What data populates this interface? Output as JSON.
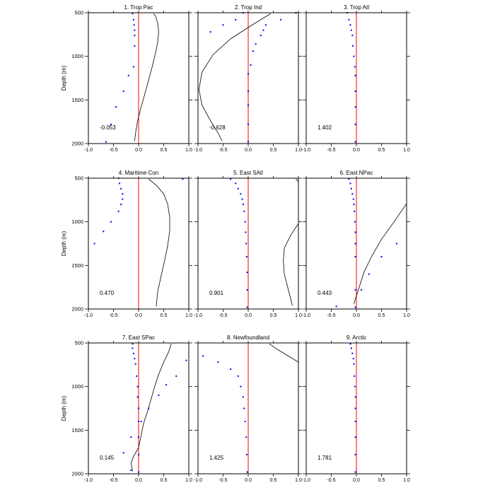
{
  "chart_data": {
    "type": "scatter",
    "layout": "3x3 panels",
    "xlim": [
      -1.0,
      1.0
    ],
    "ylim": [
      2000,
      500
    ],
    "y_reversed": true,
    "ylabel": "Depth (m)",
    "xticks": [
      "-1.0",
      "-0.5",
      "0.0",
      "0.5",
      "1.0"
    ],
    "yticks": [
      "500",
      "1000",
      "1500",
      "2000"
    ],
    "colors": {
      "points": "#0000ff",
      "zero_line": "#ff0000",
      "curve": "#000000"
    },
    "panels": [
      {
        "title": "1. Trop Pac",
        "value_label": "-0.053",
        "points": [
          [
            -0.12,
            510
          ],
          [
            -0.1,
            580
          ],
          [
            -0.09,
            640
          ],
          [
            -0.08,
            700
          ],
          [
            -0.08,
            760
          ],
          [
            -0.08,
            880
          ],
          [
            -0.1,
            1120
          ],
          [
            -0.2,
            1220
          ],
          [
            -0.3,
            1400
          ],
          [
            -0.45,
            1580
          ],
          [
            -0.55,
            1780
          ],
          [
            -0.65,
            1980
          ]
        ],
        "curve": [
          [
            0.3,
            510
          ],
          [
            0.34,
            540
          ],
          [
            0.38,
            620
          ],
          [
            0.4,
            720
          ],
          [
            0.38,
            840
          ],
          [
            0.33,
            980
          ],
          [
            0.27,
            1120
          ],
          [
            0.2,
            1270
          ],
          [
            0.13,
            1420
          ],
          [
            0.05,
            1580
          ],
          [
            -0.02,
            1740
          ],
          [
            -0.06,
            1880
          ],
          [
            -0.08,
            1970
          ]
        ]
      },
      {
        "title": "2. Trop Ind",
        "value_label": "-0.628",
        "points": [
          [
            0.95,
            500
          ],
          [
            0.65,
            580
          ],
          [
            0.35,
            640
          ],
          [
            0.3,
            700
          ],
          [
            0.25,
            760
          ],
          [
            0.15,
            860
          ],
          [
            0.1,
            940
          ],
          [
            0.05,
            1100
          ],
          [
            0.0,
            1200
          ],
          [
            0.0,
            1400
          ],
          [
            0.0,
            1560
          ],
          [
            0.0,
            1780
          ],
          [
            0.0,
            1980
          ],
          [
            -0.25,
            580
          ],
          [
            -0.75,
            720
          ],
          [
            -0.5,
            640
          ],
          [
            -0.1,
            500
          ]
        ],
        "curve": [
          [
            0.45,
            510
          ],
          [
            0.05,
            650
          ],
          [
            -0.35,
            800
          ],
          [
            -0.7,
            980
          ],
          [
            -0.92,
            1180
          ],
          [
            -0.98,
            1380
          ],
          [
            -0.92,
            1560
          ],
          [
            -0.75,
            1740
          ],
          [
            -0.6,
            1880
          ],
          [
            -0.52,
            1970
          ]
        ]
      },
      {
        "title": "3. Trop Atl",
        "value_label": "1.402",
        "points": [
          [
            -0.18,
            500
          ],
          [
            -0.15,
            580
          ],
          [
            -0.12,
            640
          ],
          [
            -0.1,
            700
          ],
          [
            -0.08,
            760
          ],
          [
            -0.07,
            880
          ],
          [
            -0.05,
            1000
          ],
          [
            -0.03,
            1120
          ],
          [
            -0.02,
            1220
          ],
          [
            -0.02,
            1400
          ],
          [
            -0.02,
            1580
          ],
          [
            -0.02,
            1780
          ],
          [
            -0.02,
            1980
          ]
        ],
        "curve": []
      },
      {
        "title": "4. Maritime Con",
        "value_label": "0.470",
        "points": [
          [
            -0.4,
            500
          ],
          [
            -0.38,
            560
          ],
          [
            -0.35,
            620
          ],
          [
            -0.32,
            680
          ],
          [
            -0.32,
            740
          ],
          [
            -0.35,
            800
          ],
          [
            -0.4,
            880
          ],
          [
            -0.55,
            1000
          ],
          [
            -0.7,
            1110
          ],
          [
            -0.88,
            1250
          ],
          [
            0.88,
            510
          ]
        ],
        "curve": [
          [
            0.2,
            510
          ],
          [
            0.35,
            580
          ],
          [
            0.5,
            680
          ],
          [
            0.58,
            800
          ],
          [
            0.62,
            950
          ],
          [
            0.62,
            1100
          ],
          [
            0.58,
            1270
          ],
          [
            0.52,
            1440
          ],
          [
            0.45,
            1620
          ],
          [
            0.38,
            1800
          ],
          [
            0.35,
            1970
          ]
        ]
      },
      {
        "title": "5. East SAtl",
        "value_label": "0.901",
        "points": [
          [
            -0.35,
            510
          ],
          [
            -0.25,
            560
          ],
          [
            -0.2,
            620
          ],
          [
            -0.15,
            680
          ],
          [
            -0.12,
            740
          ],
          [
            -0.1,
            800
          ],
          [
            -0.08,
            880
          ],
          [
            -0.06,
            1000
          ],
          [
            -0.05,
            1120
          ],
          [
            -0.04,
            1250
          ],
          [
            -0.03,
            1400
          ],
          [
            -0.02,
            1580
          ],
          [
            -0.02,
            1780
          ],
          [
            -0.02,
            1980
          ]
        ],
        "curve": [
          [
            0.95,
            510
          ],
          [
            1.0,
            540
          ]
        ],
        "curve2": [
          [
            1.0,
            1020
          ],
          [
            0.85,
            1150
          ],
          [
            0.72,
            1300
          ],
          [
            0.7,
            1450
          ],
          [
            0.72,
            1600
          ],
          [
            0.8,
            1780
          ],
          [
            0.88,
            1960
          ]
        ]
      },
      {
        "title": "6. East NPac",
        "value_label": "0.443",
        "points": [
          [
            -0.15,
            510
          ],
          [
            -0.12,
            560
          ],
          [
            -0.1,
            620
          ],
          [
            -0.08,
            680
          ],
          [
            -0.06,
            740
          ],
          [
            -0.05,
            800
          ],
          [
            -0.04,
            880
          ],
          [
            -0.03,
            1000
          ],
          [
            -0.02,
            1120
          ],
          [
            -0.02,
            1250
          ],
          [
            -0.02,
            1400
          ],
          [
            0.5,
            1400
          ],
          [
            0.8,
            1250
          ],
          [
            0.25,
            1600
          ],
          [
            0.1,
            1780
          ],
          [
            -0.02,
            1780
          ],
          [
            -0.4,
            1970
          ],
          [
            -0.02,
            1980
          ]
        ],
        "curve": [
          [
            1.0,
            790
          ],
          [
            0.75,
            1000
          ],
          [
            0.5,
            1200
          ],
          [
            0.3,
            1400
          ],
          [
            0.15,
            1580
          ],
          [
            0.05,
            1760
          ],
          [
            -0.05,
            1940
          ]
        ]
      },
      {
        "title": "7. East SPac",
        "value_label": "0.145",
        "points": [
          [
            -0.12,
            510
          ],
          [
            -0.12,
            560
          ],
          [
            -0.1,
            620
          ],
          [
            -0.08,
            680
          ],
          [
            -0.06,
            740
          ],
          [
            -0.04,
            880
          ],
          [
            -0.02,
            1000
          ],
          [
            -0.02,
            1120
          ],
          [
            0.0,
            1250
          ],
          [
            0.0,
            1400
          ],
          [
            0.0,
            1580
          ],
          [
            0.0,
            1780
          ],
          [
            0.0,
            1980
          ],
          [
            0.95,
            700
          ],
          [
            0.75,
            880
          ],
          [
            0.55,
            980
          ],
          [
            0.4,
            1100
          ],
          [
            0.2,
            1250
          ],
          [
            0.05,
            1400
          ],
          [
            -0.15,
            1580
          ],
          [
            -0.3,
            1760
          ],
          [
            -0.15,
            1960
          ]
        ],
        "curve": [
          [
            0.65,
            510
          ],
          [
            0.6,
            600
          ],
          [
            0.5,
            720
          ],
          [
            0.4,
            860
          ],
          [
            0.32,
            1000
          ],
          [
            0.25,
            1140
          ],
          [
            0.18,
            1280
          ],
          [
            0.1,
            1420
          ],
          [
            0.05,
            1560
          ],
          [
            0.0,
            1700
          ],
          [
            -0.1,
            1800
          ],
          [
            -0.15,
            1880
          ],
          [
            -0.12,
            1970
          ]
        ]
      },
      {
        "title": "8. Newfoundland",
        "value_label": "1.425",
        "points": [
          [
            -0.9,
            650
          ],
          [
            -0.6,
            720
          ],
          [
            -0.35,
            800
          ],
          [
            -0.2,
            880
          ],
          [
            -0.15,
            1000
          ],
          [
            -0.1,
            1120
          ],
          [
            -0.08,
            1250
          ],
          [
            -0.06,
            1400
          ],
          [
            -0.04,
            1580
          ],
          [
            -0.03,
            1780
          ],
          [
            -0.02,
            1980
          ]
        ],
        "curve": [
          [
            0.42,
            510
          ],
          [
            0.6,
            580
          ],
          [
            0.8,
            650
          ],
          [
            1.0,
            720
          ]
        ]
      },
      {
        "title": "9. Arctic",
        "value_label": "1.781",
        "points": [
          [
            -0.12,
            510
          ],
          [
            -0.1,
            560
          ],
          [
            -0.08,
            620
          ],
          [
            -0.06,
            680
          ],
          [
            -0.05,
            740
          ],
          [
            -0.04,
            880
          ],
          [
            -0.03,
            1000
          ],
          [
            -0.02,
            1120
          ],
          [
            -0.02,
            1250
          ],
          [
            -0.02,
            1400
          ],
          [
            -0.02,
            1580
          ],
          [
            -0.02,
            1780
          ],
          [
            -0.02,
            1980
          ]
        ],
        "curve": []
      }
    ]
  }
}
